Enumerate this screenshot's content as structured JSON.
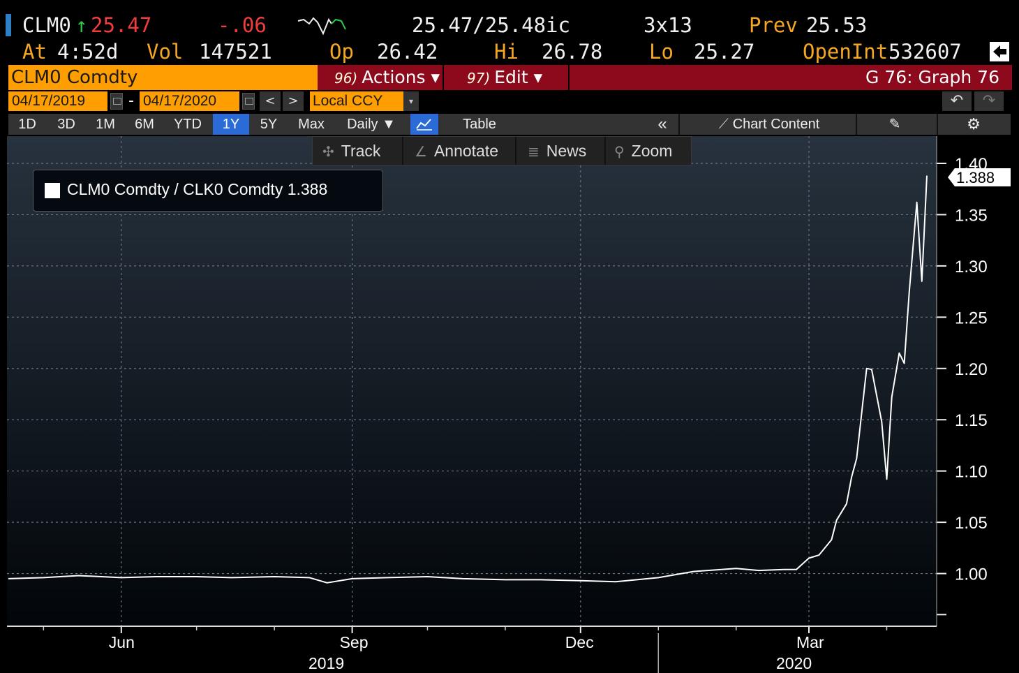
{
  "quote": {
    "ticker": "CLM0",
    "arrow": "↑",
    "last": "25.47",
    "change": "-.06",
    "bid_ask": "25.47/25.48ic",
    "size": "3x13",
    "prev_label": "Prev",
    "prev_value": "25.53",
    "at_label": "At",
    "at_value": "4:52d",
    "vol_label": "Vol",
    "vol_value": "147521",
    "op_label": "Op",
    "op_value": "26.42",
    "hi_label": "Hi",
    "hi_value": "26.78",
    "lo_label": "Lo",
    "lo_value": "25.27",
    "oi_label": "OpenInt",
    "oi_value": "532607"
  },
  "security_bar": {
    "name": "CLM0 Comdty",
    "actions_num": "96)",
    "actions_label": "Actions ▾",
    "edit_num": "97)",
    "edit_label": "Edit ▾",
    "graph_title": "G 76: Graph 76"
  },
  "date_row": {
    "start": "04/17/2019",
    "dash": "-",
    "end": "04/17/2020",
    "currency": "Local CCY",
    "prev_btn": "<",
    "next_btn": ">",
    "dropdown_arrow": "▾",
    "undo": "↶",
    "redo": "↷"
  },
  "toolbar": {
    "periods": [
      "1D",
      "3D",
      "1M",
      "6M",
      "YTD",
      "1Y",
      "5Y",
      "Max"
    ],
    "active_period": "1Y",
    "frequency": "Daily ▼",
    "table": "Table",
    "collapse": "«",
    "chart_content": "Chart Content",
    "edit_icon": "pencil-icon",
    "settings_icon": "gear-icon"
  },
  "chart_tools": {
    "track": "Track",
    "annotate": "Annotate",
    "news": "News",
    "zoom": "Zoom"
  },
  "legend": {
    "label": "CLM0 Comdty / CLK0 Comdty 1.388"
  },
  "colors": {
    "orange": "#ff9e00",
    "red_bar": "#8c0a1c",
    "active_blue": "#2a6bd8",
    "line": "#ffffff"
  },
  "chart_data": {
    "type": "line",
    "series": [
      {
        "name": "CLM0 Comdty / CLK0 Comdty",
        "x": [
          "2019-04-17",
          "2019-05-01",
          "2019-05-15",
          "2019-06-01",
          "2019-06-15",
          "2019-07-01",
          "2019-07-15",
          "2019-08-01",
          "2019-08-15",
          "2019-08-22",
          "2019-09-01",
          "2019-09-15",
          "2019-10-01",
          "2019-10-15",
          "2019-11-01",
          "2019-11-15",
          "2019-12-01",
          "2019-12-15",
          "2020-01-01",
          "2020-01-15",
          "2020-02-01",
          "2020-02-10",
          "2020-02-20",
          "2020-02-25",
          "2020-03-01",
          "2020-03-05",
          "2020-03-10",
          "2020-03-12",
          "2020-03-16",
          "2020-03-18",
          "2020-03-20",
          "2020-03-24",
          "2020-03-26",
          "2020-03-30",
          "2020-04-01",
          "2020-04-03",
          "2020-04-06",
          "2020-04-08",
          "2020-04-10",
          "2020-04-13",
          "2020-04-15",
          "2020-04-17"
        ],
        "y": [
          0.995,
          0.996,
          0.998,
          0.996,
          0.997,
          0.997,
          0.996,
          0.997,
          0.996,
          0.991,
          0.995,
          0.996,
          0.997,
          0.995,
          0.994,
          0.994,
          0.993,
          0.992,
          0.996,
          1.002,
          1.005,
          1.003,
          1.004,
          1.004,
          1.015,
          1.018,
          1.033,
          1.052,
          1.068,
          1.094,
          1.112,
          1.2,
          1.199,
          1.148,
          1.092,
          1.172,
          1.215,
          1.205,
          1.275,
          1.362,
          1.285,
          1.388
        ]
      }
    ],
    "x_ticks": [
      "Jun",
      "Sep",
      "Dec",
      "Mar"
    ],
    "x_years": [
      "2019",
      "2020"
    ],
    "y_ticks": [
      "1.00",
      "1.05",
      "1.10",
      "1.15",
      "1.20",
      "1.25",
      "1.30",
      "1.35",
      "1.40"
    ],
    "ylim": [
      0.95,
      1.4
    ],
    "last_value": "1.388",
    "grid": true
  }
}
